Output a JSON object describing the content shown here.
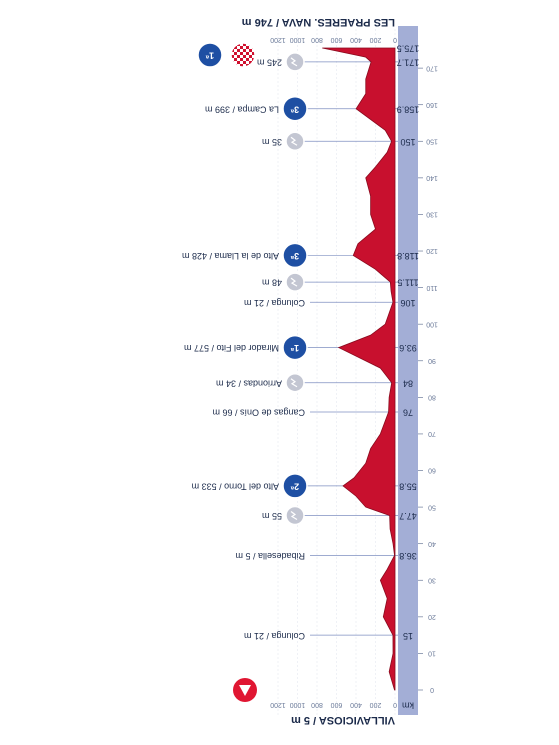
{
  "chart_data": {
    "type": "area",
    "start": "VILLAVICIOSA / 5 m",
    "finish": "LES PRAERES. NAVA / 746 m",
    "x_label": "km",
    "color": "#c8102e",
    "x": [
      0,
      5,
      10,
      15,
      20,
      25,
      30,
      33,
      36.8,
      40,
      44,
      47.7,
      50,
      53,
      55.8,
      58,
      62,
      66,
      70,
      76,
      80,
      84,
      88,
      93.6,
      97,
      100,
      106,
      109,
      111.5,
      115,
      118.8,
      122,
      126,
      130,
      135,
      140,
      143,
      147,
      150,
      153,
      158.9,
      163,
      167,
      171.7,
      173,
      175.5
    ],
    "values": [
      5,
      60,
      20,
      21,
      120,
      80,
      150,
      80,
      5,
      20,
      50,
      55,
      300,
      400,
      533,
      420,
      300,
      250,
      150,
      66,
      60,
      34,
      150,
      577,
      250,
      100,
      21,
      40,
      48,
      200,
      428,
      380,
      200,
      250,
      250,
      300,
      200,
      80,
      35,
      100,
      399,
      300,
      300,
      245,
      300,
      746
    ],
    "xlim": [
      0,
      175.5
    ],
    "ylim": [
      0,
      1200
    ],
    "xticks": [
      0,
      10,
      20,
      30,
      40,
      50,
      60,
      70,
      80,
      90,
      100,
      110,
      120,
      130,
      140,
      150,
      160,
      170
    ],
    "yticks": [
      0,
      200,
      400,
      600,
      800,
      1000,
      1200
    ],
    "grid": true,
    "waypoints": [
      {
        "km": 15,
        "label": "Colunga / 21 m",
        "kind": "town"
      },
      {
        "km": 36.8,
        "label": "Ribadesella / 5 m",
        "kind": "town"
      },
      {
        "km": 47.7,
        "label": "55 m",
        "kind": "sprint"
      },
      {
        "km": 55.8,
        "label": "Alto del Torno / 533 m",
        "kind": "climb",
        "category": "2ª"
      },
      {
        "km": 76,
        "label": "Cangas de Onís / 66 m",
        "kind": "town"
      },
      {
        "km": 84,
        "label": "Arriondas / 34 m",
        "kind": "sprint"
      },
      {
        "km": 93.6,
        "label": "Mirador del Fito / 577 m",
        "kind": "climb",
        "category": "1ª"
      },
      {
        "km": 106,
        "label": "Colunga / 21 m",
        "kind": "town"
      },
      {
        "km": 111.5,
        "label": "48 m",
        "kind": "sprint"
      },
      {
        "km": 118.8,
        "label": "Alto de la Llama / 428 m",
        "kind": "climb",
        "category": "3ª"
      },
      {
        "km": 150,
        "label": "35 m",
        "kind": "sprint"
      },
      {
        "km": 158.9,
        "label": "La Campa / 399 m",
        "kind": "climb",
        "category": "3ª"
      },
      {
        "km": 171.7,
        "label": "245 m",
        "kind": "sprint"
      },
      {
        "km": 175.5,
        "label": "",
        "kind": "finish",
        "category": "1ª"
      }
    ]
  }
}
